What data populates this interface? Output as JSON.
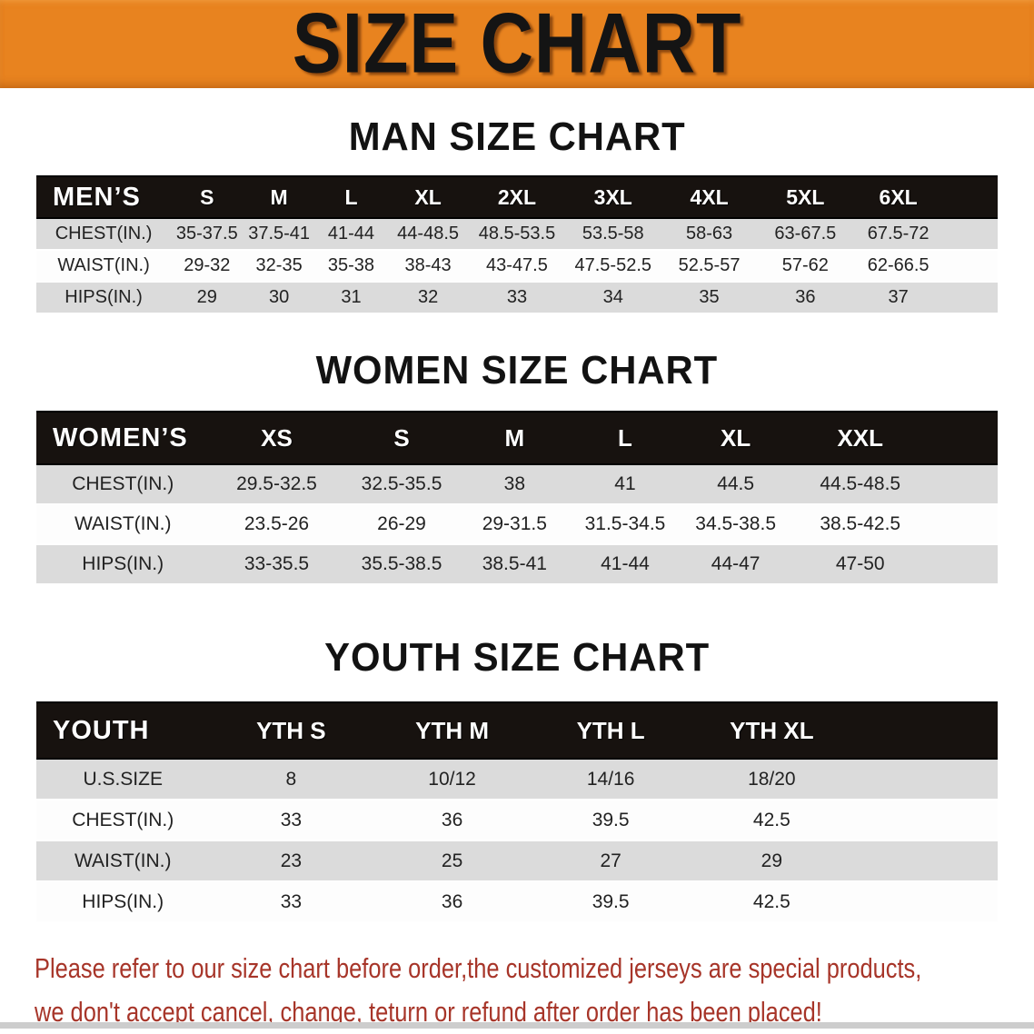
{
  "banner": {
    "title": "SIZE CHART",
    "bg_color": "#E8831F",
    "text_color": "#141414"
  },
  "colors": {
    "table_header_bg": "#17120F",
    "table_header_text": "#FFFFFF",
    "row_shaded_bg": "#DBDBDB",
    "row_plain_bg": "#FDFDFD",
    "note_text": "#A73529"
  },
  "sections": [
    {
      "heading": "MAN SIZE CHART",
      "table": {
        "name": "mens",
        "header": [
          "MEN’S",
          "S",
          "M",
          "L",
          "XL",
          "2XL",
          "3XL",
          "4XL",
          "5XL",
          "6XL"
        ],
        "rows": [
          {
            "label": "CHEST(IN.)",
            "values": [
              "35-37.5",
              "37.5-41",
              "41-44",
              "44-48.5",
              "48.5-53.5",
              "53.5-58",
              "58-63",
              "63-67.5",
              "67.5-72"
            ]
          },
          {
            "label": "WAIST(IN.)",
            "values": [
              "29-32",
              "32-35",
              "35-38",
              "38-43",
              "43-47.5",
              "47.5-52.5",
              "52.5-57",
              "57-62",
              "62-66.5"
            ]
          },
          {
            "label": "HIPS(IN.)",
            "values": [
              "29",
              "30",
              "31",
              "32",
              "33",
              "34",
              "35",
              "36",
              "37"
            ]
          }
        ]
      }
    },
    {
      "heading": "WOMEN SIZE CHART",
      "table": {
        "name": "womens",
        "header": [
          "WOMEN’S",
          "XS",
          "S",
          "M",
          "L",
          "XL",
          "XXL"
        ],
        "rows": [
          {
            "label": "CHEST(IN.)",
            "values": [
              "29.5-32.5",
              "32.5-35.5",
              "38",
              "41",
              "44.5",
              "44.5-48.5"
            ]
          },
          {
            "label": "WAIST(IN.)",
            "values": [
              "23.5-26",
              "26-29",
              "29-31.5",
              "31.5-34.5",
              "34.5-38.5",
              "38.5-42.5"
            ]
          },
          {
            "label": "HIPS(IN.)",
            "values": [
              "33-35.5",
              "35.5-38.5",
              "38.5-41",
              "41-44",
              "44-47",
              "47-50"
            ]
          }
        ]
      }
    },
    {
      "heading": "YOUTH SIZE CHART",
      "table": {
        "name": "youth",
        "spacer": true,
        "header": [
          "YOUTH",
          "YTH S",
          "YTH M",
          "YTH L",
          "YTH XL"
        ],
        "rows": [
          {
            "label": "U.S.SIZE",
            "values": [
              "8",
              "10/12",
              "14/16",
              "18/20"
            ]
          },
          {
            "label": "CHEST(IN.)",
            "values": [
              "33",
              "36",
              "39.5",
              "42.5"
            ]
          },
          {
            "label": "WAIST(IN.)",
            "values": [
              "23",
              "25",
              "27",
              "29"
            ]
          },
          {
            "label": "HIPS(IN.)",
            "values": [
              "33",
              "36",
              "39.5",
              "42.5"
            ]
          }
        ]
      }
    }
  ],
  "footer": {
    "line1": "Please refer to our size chart before order,the customized jerseys are special products,",
    "line2": "we don't accept cancel, change, teturn or refund after order has been placed!"
  }
}
